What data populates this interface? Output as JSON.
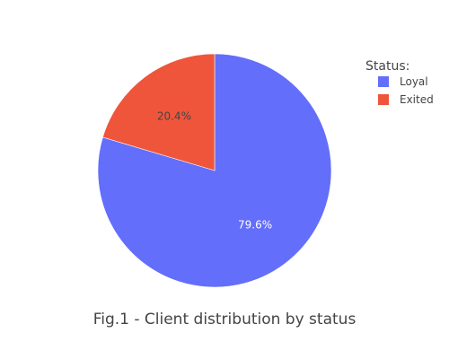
{
  "chart_data": {
    "type": "pie",
    "title": "Fig.1 - Client distribution by status",
    "legend_title": "Status:",
    "legend_position": "top-right",
    "categories": [
      "Loyal",
      "Exited"
    ],
    "values": [
      79.6,
      20.4
    ],
    "labels": [
      "79.6%",
      "20.4%"
    ],
    "colors": [
      "#636efa",
      "#ef553b"
    ],
    "label_colors": [
      "#ffffff",
      "#444444"
    ]
  }
}
